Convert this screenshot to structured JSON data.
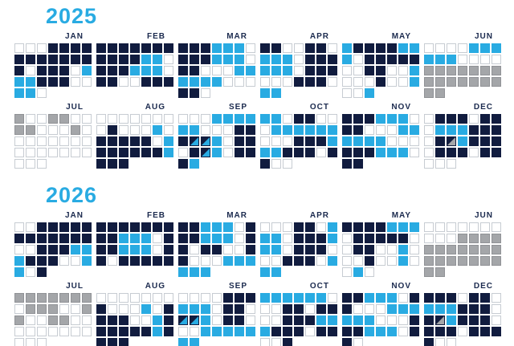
{
  "chart_data": {
    "type": "heatmap",
    "description": "Two-year calendar heatmap; each month is a sequential grid of day squares (7 per row), colored by category. Cell codes: W=white/empty, N=navy, C=cyan, G=gray, S=diagonal split navy/cyan, T=diagonal split navy/gray.",
    "cell_legend": {
      "W": "white-empty",
      "N": "navy",
      "C": "cyan",
      "G": "gray",
      "S": "split-navy-cyan",
      "T": "split-navy-gray"
    },
    "colors": {
      "title": "#29abe2",
      "month_label": "#1b2a4e",
      "navy": "#111c3f",
      "cyan": "#29abe2",
      "gray": "#a4a6a9",
      "white_fill": "#ffffff",
      "white_border": "#c7ccd2"
    },
    "years": [
      {
        "label": "2025",
        "rows": [
          [
            {
              "label": "JAN",
              "cells": "WWWNNNNNNNNNNNNWNNNWCCCNNNWWCCW"
            },
            {
              "label": "FEB",
              "cells": "NNNNNNNNNNNCCWNNNCCCWNNWWNNN"
            },
            {
              "label": "MAR",
              "cells": "NNNCCCWNNNCCCWNNWWWCCCCCCWWWNNW"
            },
            {
              "label": "APR",
              "cells": "NNWWNNWCCCWNNNCCCWNNNWWWNNNWCC"
            },
            {
              "label": "MAY",
              "cells": "CNNNNCCCWNNNNNWWNNWWCWWWNWWCWWC"
            },
            {
              "label": "JUN",
              "cells": "WWWWCCCCCCWWWWGGGGGGGGGGGGGGGG"
            }
          ],
          [
            {
              "label": "JUL",
              "cells": "GWWGGWWGGWWWGWWWWWWWWWWWWWWWWWW"
            },
            {
              "label": "AUG",
              "cells": "WWWWWWWWNWWWCWNNNNNWCNNNNNNCNNN"
            },
            {
              "label": "SEP",
              "cells": "WWWCCCCCCWWWNNNSSCWNNWNSCWNNNC"
            },
            {
              "label": "OCT",
              "cells": "CCWNNWWWCCCCCCWWWNNNCCCNNNWNNWW"
            },
            {
              "label": "NOV",
              "cells": "NNNCCCWNNWWWCCCCCCWWWNNNCCCWNN"
            },
            {
              "label": "DEC",
              "cells": "WNNNWNNWCCCNNNWNTCNNNWNNNWNNWWW"
            }
          ]
        ]
      },
      {
        "label": "2026",
        "rows": [
          [
            {
              "label": "JAN",
              "cells": "WWNNNNNNNNNNNNWWNNNCCCNNNWWCCWN"
            },
            {
              "label": "FEB",
              "cells": "NNNNNNNNNCCCWNNNCCCWNNWNNNNN"
            },
            {
              "label": "MAR",
              "cells": "NNCCCWNNNCCCWNNWNNWWNNWWWCCCCCC"
            },
            {
              "label": "APR",
              "cells": "WWWNNWCCCWNNNCCCWNNNWWWNNNWCCC"
            },
            {
              "label": "MAY",
              "cells": "NNNNCCCWNNNNNWWNNWWCWWWNWWCWWCW"
            },
            {
              "label": "JUN",
              "cells": "WWWWWWWWWWGGGGGGGGGGGGGGGGGGGG"
            }
          ],
          [
            {
              "label": "JUL",
              "cells": "GGGGGGGWGGGWWGGWWGGWWWWWWWWWWWW"
            },
            {
              "label": "AUG",
              "cells": "WWWWWWWNWWWCWNNNNWWCNNNNNNCNNNN"
            },
            {
              "label": "SEP",
              "cells": "WWWWNNNCCCWNNWSSCWNNWWWCCCCCCC"
            },
            {
              "label": "OCT",
              "cells": "CCCCCCWWWNNWNNWWNNNCCCNNNWNNWWN"
            },
            {
              "label": "NOV",
              "cells": "NNCCCWNNWWWCCCCCCWWWNNNCCCWNNW"
            },
            {
              "label": "DEC",
              "cells": "NNNWNNWCCCNNNWNTCNNNWNNNWNNNNWW"
            }
          ]
        ]
      }
    ]
  }
}
